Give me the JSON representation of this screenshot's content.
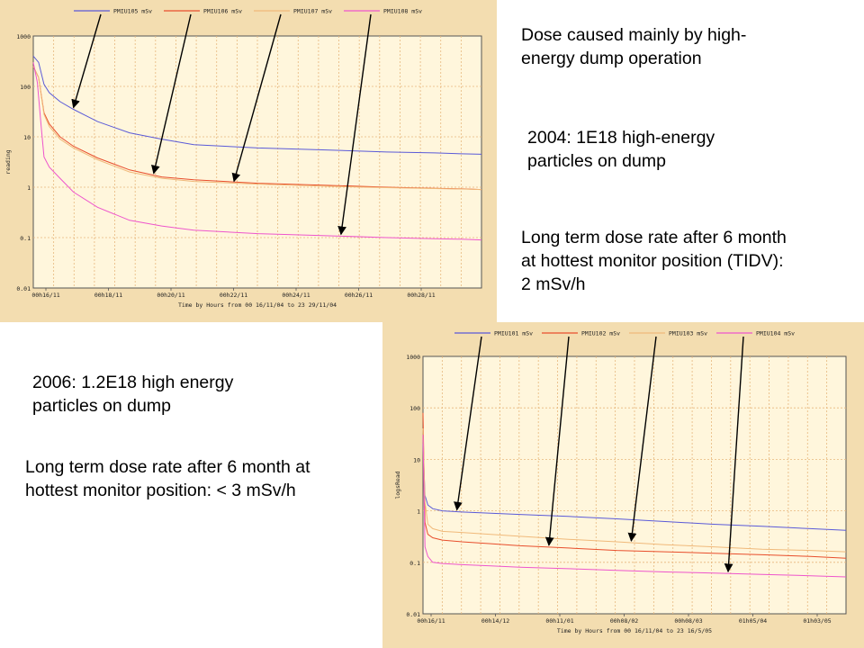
{
  "slide": {
    "text_dose_caused": "Dose caused mainly by high-\nenergy dump operation",
    "text_2004": "2004: 1E18 high-energy\nparticles on dump",
    "text_long_term_2004": "Long term dose rate after 6 month\nat hottest monitor position (TIDV):\n2 mSv/h",
    "text_2006": "2006: 1.2E18 high energy\nparticles on dump",
    "text_long_term_2006": "Long term dose rate after 6 month at\nhottest monitor position: < 3 mSv/h"
  },
  "colors": {
    "panel_bg": "#f3ddb0",
    "plot_bg": "#fff6dc",
    "grid": "#e7b77d",
    "blue": "#5a5ad8",
    "red": "#e84e2c",
    "orange": "#f0b97a",
    "pink": "#ee55cc"
  },
  "chart_data": [
    {
      "type": "line",
      "yscale": "log",
      "ylim": [
        0.01,
        1000
      ],
      "yticks": [
        "1000",
        "100",
        "10",
        "1",
        "0.1",
        "0.01"
      ],
      "ylabel": "reading",
      "xlabel": "Time by Hours  from 00 16/11/04 to 23 29/11/04",
      "xticks": [
        "00h16/11",
        "00h18/11",
        "00h20/11",
        "00h22/11",
        "00h24/11",
        "00h26/11",
        "00h28/11"
      ],
      "xlim": [
        0,
        335
      ],
      "legend_position": "top",
      "series": [
        {
          "name": "PMIU105  mSv",
          "color_key": "blue",
          "x": [
            0,
            4,
            8,
            12,
            20,
            30,
            48,
            72,
            96,
            120,
            168,
            216,
            264,
            300,
            320,
            335
          ],
          "y": [
            400,
            300,
            110,
            75,
            50,
            35,
            20,
            12,
            9,
            7,
            6,
            5.5,
            5,
            4.8,
            4.6,
            4.5
          ]
        },
        {
          "name": "PMIU106  mSv",
          "color_key": "red",
          "x": [
            0,
            4,
            8,
            12,
            20,
            30,
            48,
            72,
            96,
            120,
            168,
            216,
            264,
            300,
            320,
            335
          ],
          "y": [
            250,
            150,
            30,
            18,
            10,
            6.5,
            3.8,
            2.2,
            1.6,
            1.4,
            1.2,
            1.1,
            1.0,
            0.95,
            0.93,
            0.9
          ]
        },
        {
          "name": "PMIU107  mSv",
          "color_key": "orange",
          "x": [
            0,
            4,
            8,
            12,
            20,
            30,
            48,
            72,
            96,
            120,
            168,
            216,
            264,
            300,
            320,
            335
          ],
          "y": [
            250,
            150,
            28,
            16,
            9,
            6,
            3.5,
            2.0,
            1.5,
            1.3,
            1.15,
            1.05,
            0.98,
            0.94,
            0.92,
            0.9
          ]
        },
        {
          "name": "PMIU108  mSv",
          "color_key": "pink",
          "x": [
            0,
            3,
            6,
            8,
            12,
            20,
            30,
            48,
            72,
            96,
            120,
            168,
            216,
            264,
            300,
            320,
            335
          ],
          "y": [
            300,
            120,
            15,
            4,
            2.5,
            1.5,
            0.8,
            0.4,
            0.22,
            0.17,
            0.14,
            0.12,
            0.11,
            0.1,
            0.095,
            0.093,
            0.09
          ]
        }
      ],
      "annotations": [
        {
          "series": 0,
          "x": 30
        },
        {
          "series": 1,
          "x": 90
        },
        {
          "series": 2,
          "x": 150
        },
        {
          "series": 3,
          "x": 230
        }
      ]
    },
    {
      "type": "line",
      "yscale": "log",
      "ylim": [
        0.01,
        1000
      ],
      "yticks": [
        "1000",
        "100",
        "10",
        "1",
        "0.1",
        "0.01"
      ],
      "ylabel": "logsRead",
      "xlabel": "Time by Hours  from 00 16/11/04 to 23 16/5/05",
      "xticks": [
        "00h16/11",
        "00h14/12",
        "00h11/01",
        "00h08/02",
        "00h08/03",
        "01h05/04",
        "01h03/05"
      ],
      "xlim": [
        0,
        4367
      ],
      "legend_position": "top",
      "series": [
        {
          "name": "PMIU101  mSv",
          "color_key": "blue",
          "x": [
            0,
            20,
            50,
            100,
            200,
            400,
            700,
            1000,
            1500,
            2000,
            2500,
            3000,
            3500,
            4000,
            4367
          ],
          "y": [
            20,
            2.0,
            1.3,
            1.1,
            1.0,
            0.95,
            0.9,
            0.85,
            0.78,
            0.7,
            0.62,
            0.55,
            0.5,
            0.45,
            0.42
          ]
        },
        {
          "name": "PMIU102  mSv",
          "color_key": "red",
          "x": [
            0,
            20,
            50,
            100,
            200,
            400,
            700,
            1000,
            1500,
            2000,
            2500,
            3000,
            3500,
            4000,
            4367
          ],
          "y": [
            80,
            0.6,
            0.35,
            0.3,
            0.27,
            0.25,
            0.23,
            0.21,
            0.19,
            0.17,
            0.16,
            0.15,
            0.14,
            0.13,
            0.12
          ]
        },
        {
          "name": "PMIU103  mSv",
          "color_key": "orange",
          "x": [
            0,
            20,
            50,
            100,
            200,
            400,
            700,
            1000,
            1500,
            2000,
            2500,
            3000,
            3500,
            4000,
            4367
          ],
          "y": [
            40,
            1.5,
            0.55,
            0.45,
            0.4,
            0.38,
            0.35,
            0.32,
            0.28,
            0.25,
            0.22,
            0.2,
            0.18,
            0.17,
            0.16
          ]
        },
        {
          "name": "PMIU104  mSv",
          "color_key": "pink",
          "x": [
            0,
            20,
            50,
            100,
            200,
            400,
            700,
            1000,
            1500,
            2000,
            2500,
            3000,
            3500,
            4000,
            4367
          ],
          "y": [
            30,
            0.2,
            0.13,
            0.1,
            0.095,
            0.09,
            0.085,
            0.08,
            0.075,
            0.07,
            0.065,
            0.062,
            0.058,
            0.055,
            0.052
          ]
        }
      ],
      "annotations": [
        {
          "series": 0,
          "x": 350
        },
        {
          "series": 1,
          "x": 1300
        },
        {
          "series": 2,
          "x": 2150
        },
        {
          "series": 3,
          "x": 3150
        }
      ]
    }
  ]
}
